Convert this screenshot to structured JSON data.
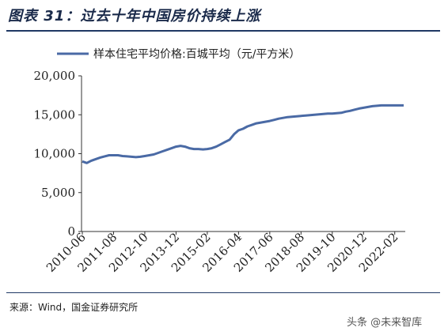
{
  "figure": {
    "title": "图表 31：过去十年中国房价持续上涨",
    "source": "来源：Wind，国金证券研究所",
    "watermark": "头条 @未来智库"
  },
  "colors": {
    "series": "#4a6aa5",
    "rule": "#1f3864"
  },
  "chart_data": {
    "type": "line",
    "title": "",
    "xlabel": "",
    "ylabel": "",
    "ylim": [
      0,
      20000
    ],
    "yticks": [
      "20,000",
      "15,000",
      "10,000",
      "5,000",
      "0"
    ],
    "ytick_values": [
      20000,
      15000,
      10000,
      5000,
      0
    ],
    "xticks": [
      "2010-06",
      "2011-08",
      "2012-10",
      "2013-12",
      "2015-02",
      "2016-04",
      "2017-06",
      "2018-08",
      "2019-10",
      "2020-12",
      "2022-02"
    ],
    "legend": "top-center",
    "grid": false,
    "series": [
      {
        "name": "样本住宅平均价格:百城平均（元/平方米）",
        "x": [
          "2010-06",
          "2010-08",
          "2010-10",
          "2010-12",
          "2011-02",
          "2011-04",
          "2011-06",
          "2011-08",
          "2011-10",
          "2011-12",
          "2012-02",
          "2012-04",
          "2012-06",
          "2012-08",
          "2012-10",
          "2012-12",
          "2013-02",
          "2013-04",
          "2013-06",
          "2013-08",
          "2013-10",
          "2013-12",
          "2014-02",
          "2014-04",
          "2014-06",
          "2014-08",
          "2014-10",
          "2014-12",
          "2015-02",
          "2015-04",
          "2015-06",
          "2015-08",
          "2015-10",
          "2015-12",
          "2016-02",
          "2016-04",
          "2016-06",
          "2016-08",
          "2016-10",
          "2016-12",
          "2017-02",
          "2017-04",
          "2017-06",
          "2017-08",
          "2017-10",
          "2017-12",
          "2018-02",
          "2018-04",
          "2018-06",
          "2018-08",
          "2018-10",
          "2018-12",
          "2019-02",
          "2019-04",
          "2019-06",
          "2019-08",
          "2019-10",
          "2019-12",
          "2020-02",
          "2020-04",
          "2020-06",
          "2020-08",
          "2020-10",
          "2020-12",
          "2021-02",
          "2021-04",
          "2021-06",
          "2021-08",
          "2021-10",
          "2021-12",
          "2022-02",
          "2022-04",
          "2022-06"
        ],
        "values": [
          9000,
          8800,
          9100,
          9300,
          9500,
          9650,
          9800,
          9800,
          9800,
          9700,
          9650,
          9600,
          9550,
          9600,
          9700,
          9800,
          9900,
          10100,
          10300,
          10500,
          10700,
          10900,
          11000,
          10900,
          10700,
          10600,
          10600,
          10550,
          10600,
          10700,
          10900,
          11200,
          11500,
          11800,
          12500,
          13000,
          13200,
          13500,
          13700,
          13900,
          14000,
          14100,
          14200,
          14350,
          14500,
          14600,
          14700,
          14750,
          14800,
          14850,
          14900,
          14950,
          15000,
          15050,
          15100,
          15150,
          15150,
          15200,
          15250,
          15400,
          15500,
          15650,
          15800,
          15900,
          16000,
          16100,
          16150,
          16200,
          16200,
          16200,
          16200,
          16200,
          16200
        ]
      }
    ]
  }
}
